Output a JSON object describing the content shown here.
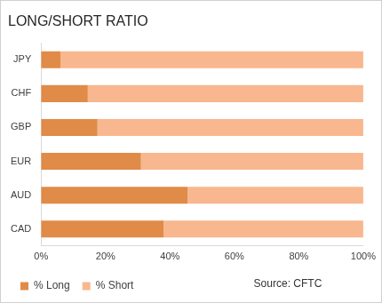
{
  "chart_data": {
    "type": "bar",
    "title": "LONG/SHORT RATIO",
    "orientation": "horizontal",
    "stacked": true,
    "grid": false,
    "legend": "bottom",
    "categories": [
      "JPY",
      "CHF",
      "GBP",
      "EUR",
      "AUD",
      "CAD"
    ],
    "series": [
      {
        "name": "% Long",
        "color": "#e08b48",
        "values": [
          6,
          14.5,
          17.5,
          31,
          45.5,
          38
        ]
      },
      {
        "name": "% Short",
        "color": "#f8b78e",
        "values": [
          94,
          85.5,
          82.5,
          69,
          54.5,
          62
        ]
      }
    ],
    "xlim": [
      0,
      100
    ],
    "xticks": [
      {
        "value": 0,
        "label": "0%"
      },
      {
        "value": 20,
        "label": "20%"
      },
      {
        "value": 40,
        "label": "40%"
      },
      {
        "value": 60,
        "label": "60%"
      },
      {
        "value": 80,
        "label": "80%"
      },
      {
        "value": 100,
        "label": "100%"
      }
    ],
    "annotations": [
      "Source: CFTC"
    ]
  }
}
